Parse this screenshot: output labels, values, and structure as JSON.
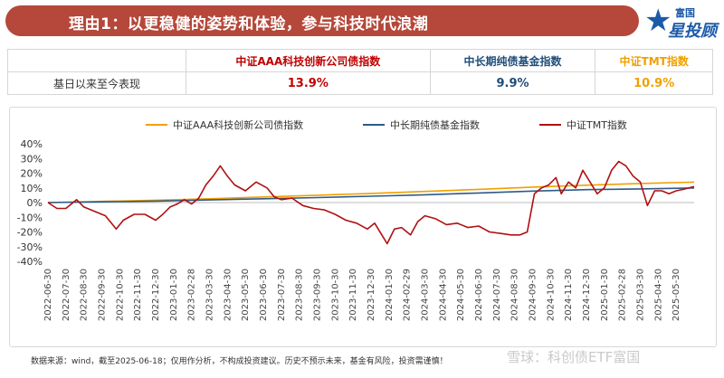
{
  "banner": {
    "title": "理由1：以更稳健的姿势和体验，参与科技时代浪潮"
  },
  "logo": {
    "top": "富国",
    "main": "星投顾"
  },
  "table": {
    "row_label": "基日以来至今表现",
    "headers": [
      "中证AAA科技创新公司债指数",
      "中长期纯债基金指数",
      "中证TMT指数"
    ],
    "values": [
      "13.9%",
      "9.9%",
      "10.9%"
    ],
    "colors": [
      "#c00000",
      "#1f4e79",
      "#f0a000"
    ]
  },
  "chart_data": {
    "type": "line",
    "ylim": [
      -40,
      40
    ],
    "y_ticks": [
      "40%",
      "30%",
      "20%",
      "10%",
      "0%",
      "-10%",
      "-20%",
      "-30%",
      "-40%"
    ],
    "x_ticks": [
      "2022-06-30",
      "2022-07-30",
      "2022-08-30",
      "2022-09-30",
      "2022-10-30",
      "2022-11-30",
      "2022-12-30",
      "2023-01-30",
      "2023-02-28",
      "2023-03-30",
      "2023-04-30",
      "2023-05-30",
      "2023-06-30",
      "2023-07-30",
      "2023-08-30",
      "2023-09-30",
      "2023-10-30",
      "2023-11-30",
      "2023-12-30",
      "2024-01-30",
      "2024-02-29",
      "2024-03-30",
      "2024-04-30",
      "2024-05-30",
      "2024-06-30",
      "2024-07-30",
      "2024-08-30",
      "2024-09-30",
      "2024-10-30",
      "2024-11-30",
      "2024-12-30",
      "2025-01-30",
      "2025-02-28",
      "2025-03-30",
      "2025-04-30",
      "2025-05-30"
    ],
    "x_start": 0,
    "x_end": 36,
    "series": [
      {
        "name": "中证AAA科技创新公司债指数",
        "color": "#f0a000",
        "points": [
          [
            0,
            0
          ],
          [
            3,
            0.8
          ],
          [
            6,
            1.6
          ],
          [
            9,
            2.6
          ],
          [
            12,
            3.8
          ],
          [
            15,
            5
          ],
          [
            18,
            6.2
          ],
          [
            21,
            7.6
          ],
          [
            24,
            9
          ],
          [
            27,
            10.5
          ],
          [
            30,
            11.8
          ],
          [
            33,
            13
          ],
          [
            36,
            13.9
          ]
        ]
      },
      {
        "name": "中长期纯债基金指数",
        "color": "#2e5b87",
        "points": [
          [
            0,
            0
          ],
          [
            3,
            0.5
          ],
          [
            6,
            1
          ],
          [
            9,
            1.8
          ],
          [
            12,
            2.6
          ],
          [
            15,
            3.4
          ],
          [
            18,
            4.3
          ],
          [
            21,
            5.3
          ],
          [
            24,
            6.5
          ],
          [
            27,
            7.8
          ],
          [
            30,
            8.8
          ],
          [
            33,
            9.3
          ],
          [
            36,
            9.9
          ]
        ]
      },
      {
        "name": "中证TMT指数",
        "color": "#b01010",
        "points": [
          [
            0,
            0
          ],
          [
            0.5,
            -4
          ],
          [
            1,
            -4
          ],
          [
            1.6,
            2
          ],
          [
            2,
            -3
          ],
          [
            2.6,
            -6
          ],
          [
            3.2,
            -9
          ],
          [
            3.8,
            -18
          ],
          [
            4.2,
            -12
          ],
          [
            4.8,
            -8
          ],
          [
            5.4,
            -8
          ],
          [
            6,
            -12
          ],
          [
            6.4,
            -8
          ],
          [
            6.8,
            -3
          ],
          [
            7.2,
            -1
          ],
          [
            7.6,
            2
          ],
          [
            8,
            -1
          ],
          [
            8.4,
            3
          ],
          [
            8.8,
            12
          ],
          [
            9.2,
            18
          ],
          [
            9.6,
            25
          ],
          [
            10,
            18
          ],
          [
            10.4,
            12
          ],
          [
            11,
            8
          ],
          [
            11.6,
            14
          ],
          [
            12.2,
            10
          ],
          [
            12.6,
            4
          ],
          [
            13,
            2
          ],
          [
            13.6,
            3
          ],
          [
            14.2,
            -2
          ],
          [
            14.8,
            -4
          ],
          [
            15.4,
            -5
          ],
          [
            16,
            -8
          ],
          [
            16.6,
            -12
          ],
          [
            17.2,
            -14
          ],
          [
            17.8,
            -18
          ],
          [
            18.2,
            -14
          ],
          [
            18.6,
            -22
          ],
          [
            18.9,
            -28
          ],
          [
            19.3,
            -18
          ],
          [
            19.7,
            -17
          ],
          [
            20.2,
            -22
          ],
          [
            20.6,
            -13
          ],
          [
            21,
            -9
          ],
          [
            21.6,
            -11
          ],
          [
            22.2,
            -15
          ],
          [
            22.8,
            -14
          ],
          [
            23.4,
            -17
          ],
          [
            24,
            -16
          ],
          [
            24.6,
            -20
          ],
          [
            25.2,
            -21
          ],
          [
            25.8,
            -22
          ],
          [
            26.3,
            -22
          ],
          [
            26.7,
            -20
          ],
          [
            27.1,
            6
          ],
          [
            27.5,
            10
          ],
          [
            27.9,
            12
          ],
          [
            28.3,
            17
          ],
          [
            28.6,
            6
          ],
          [
            29,
            14
          ],
          [
            29.4,
            10
          ],
          [
            29.8,
            22
          ],
          [
            30.2,
            14
          ],
          [
            30.6,
            6
          ],
          [
            31,
            10
          ],
          [
            31.4,
            22
          ],
          [
            31.8,
            28
          ],
          [
            32.2,
            25
          ],
          [
            32.6,
            18
          ],
          [
            33,
            14
          ],
          [
            33.4,
            -2
          ],
          [
            33.8,
            8
          ],
          [
            34.2,
            8
          ],
          [
            34.6,
            6
          ],
          [
            35,
            8
          ],
          [
            35.4,
            9
          ],
          [
            36,
            10.9
          ]
        ]
      }
    ]
  },
  "footnote": "数据来源：wind，截至2025-06-18；仅用作分析，不构成投资建议。历史不预示未来，基金有风险，投资需谨慎！",
  "watermark": "雪球：科创债ETF富国"
}
